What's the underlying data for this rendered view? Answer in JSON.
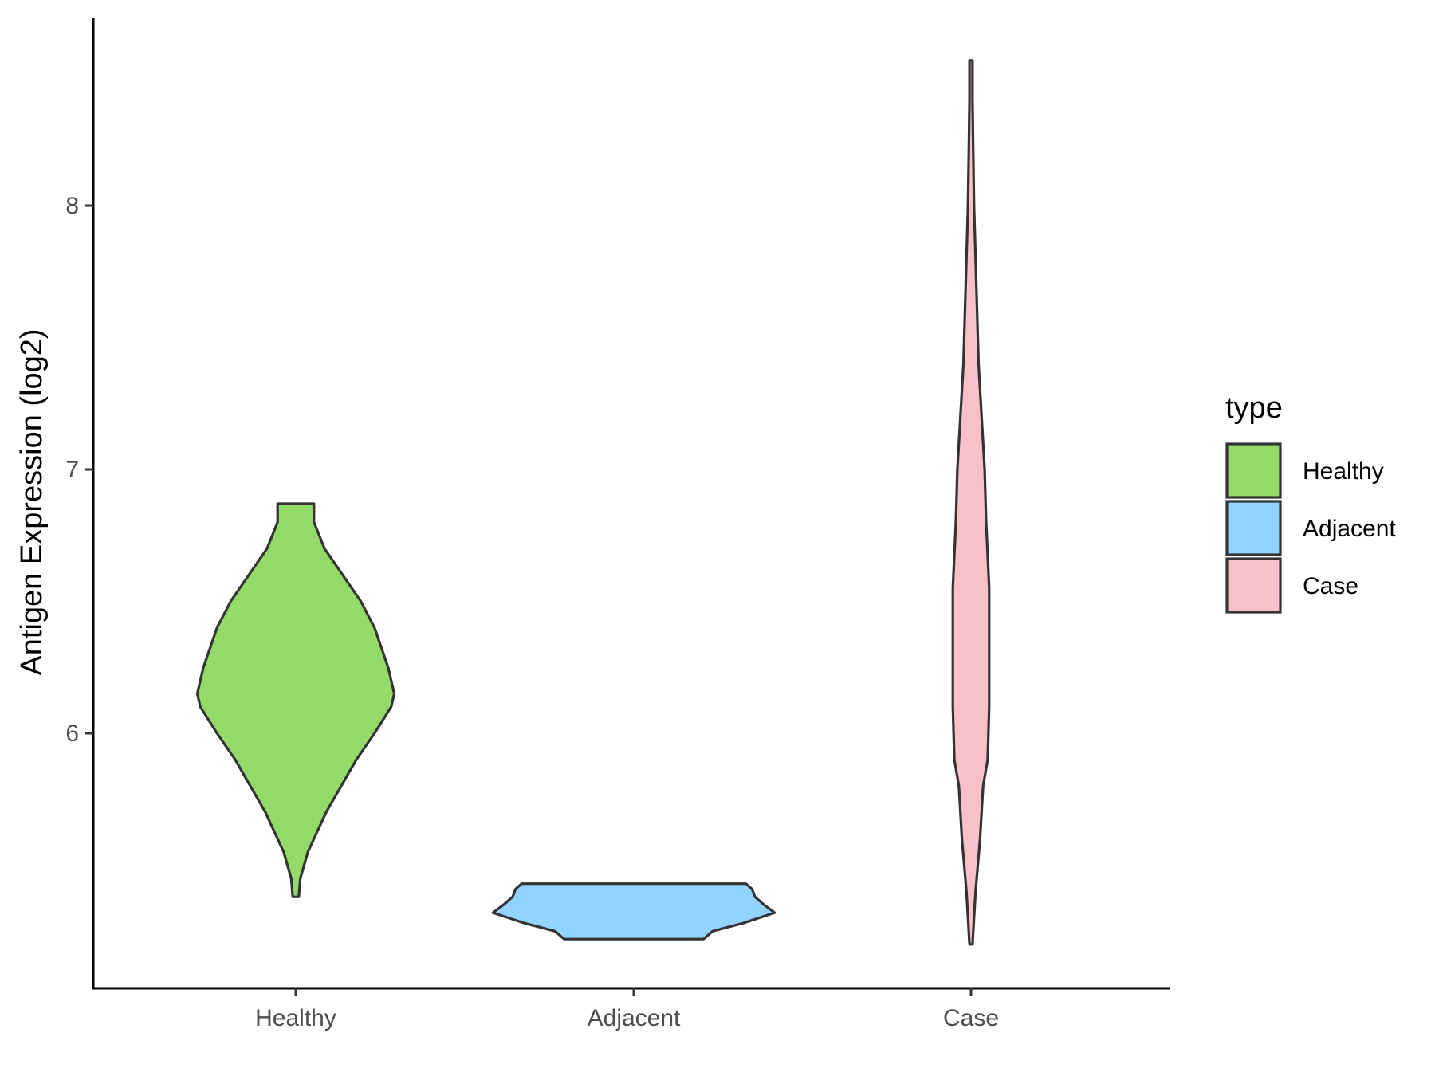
{
  "chart_data": {
    "type": "violin",
    "title": "",
    "xlabel": "",
    "ylabel": "Antigen Expression (log2)",
    "categories": [
      "Healthy",
      "Adjacent",
      "Case"
    ],
    "y_ticks": [
      6,
      7,
      8
    ],
    "y_tick_labels": [
      "6",
      "7",
      "8"
    ],
    "ylim": [
      5.1,
      8.7
    ],
    "grid": false,
    "legend": {
      "title": "type",
      "placement": "right",
      "entries": [
        "Healthy",
        "Adjacent",
        "Case"
      ]
    },
    "colors": {
      "Healthy": "#93DA69",
      "Adjacent": "#93D3FF",
      "Case": "#F7C0CB",
      "outline": "#333333"
    },
    "series": [
      {
        "category": "Healthy",
        "min": 5.38,
        "max": 6.87,
        "density": [
          [
            5.38,
            0.02
          ],
          [
            5.45,
            0.03
          ],
          [
            5.55,
            0.08
          ],
          [
            5.7,
            0.2
          ],
          [
            5.8,
            0.3
          ],
          [
            5.9,
            0.4
          ],
          [
            6.0,
            0.52
          ],
          [
            6.1,
            0.63
          ],
          [
            6.15,
            0.65
          ],
          [
            6.25,
            0.61
          ],
          [
            6.4,
            0.52
          ],
          [
            6.5,
            0.43
          ],
          [
            6.6,
            0.31
          ],
          [
            6.7,
            0.19
          ],
          [
            6.8,
            0.12
          ],
          [
            6.87,
            0.12
          ]
        ]
      },
      {
        "category": "Adjacent",
        "min": 5.22,
        "max": 5.43,
        "density": [
          [
            5.22,
            0.46
          ],
          [
            5.25,
            0.52
          ],
          [
            5.28,
            0.72
          ],
          [
            5.32,
            0.93
          ],
          [
            5.35,
            0.86
          ],
          [
            5.38,
            0.8
          ],
          [
            5.41,
            0.78
          ],
          [
            5.43,
            0.74
          ]
        ]
      },
      {
        "category": "Case",
        "min": 5.2,
        "max": 8.55,
        "density": [
          [
            5.2,
            0.01
          ],
          [
            5.4,
            0.03
          ],
          [
            5.6,
            0.06
          ],
          [
            5.8,
            0.08
          ],
          [
            5.9,
            0.11
          ],
          [
            6.1,
            0.12
          ],
          [
            6.3,
            0.12
          ],
          [
            6.55,
            0.12
          ],
          [
            6.8,
            0.1
          ],
          [
            7.0,
            0.09
          ],
          [
            7.2,
            0.07
          ],
          [
            7.4,
            0.05
          ],
          [
            7.6,
            0.04
          ],
          [
            7.8,
            0.03
          ],
          [
            8.0,
            0.02
          ],
          [
            8.2,
            0.015
          ],
          [
            8.4,
            0.01
          ],
          [
            8.55,
            0.01
          ]
        ]
      }
    ]
  }
}
